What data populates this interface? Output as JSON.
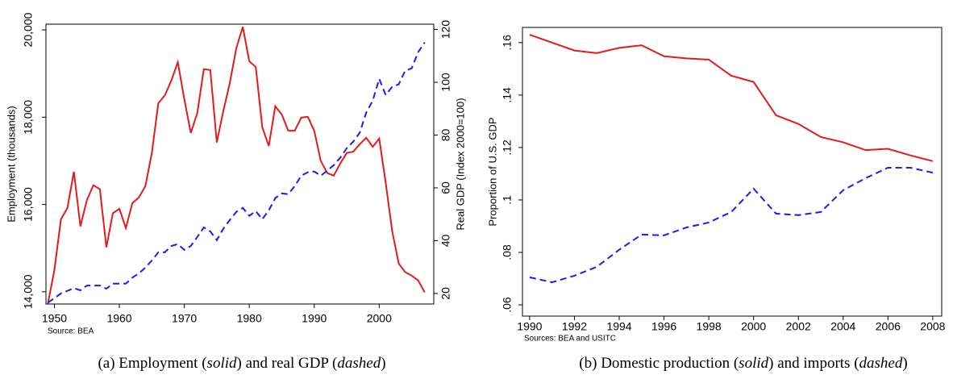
{
  "chart_data": [
    {
      "type": "line",
      "x": [
        1949,
        1950,
        1951,
        1952,
        1953,
        1954,
        1955,
        1956,
        1957,
        1958,
        1959,
        1960,
        1961,
        1962,
        1963,
        1964,
        1965,
        1966,
        1967,
        1968,
        1969,
        1970,
        1971,
        1972,
        1973,
        1974,
        1975,
        1976,
        1977,
        1978,
        1979,
        1980,
        1981,
        1982,
        1983,
        1984,
        1985,
        1986,
        1987,
        1988,
        1989,
        1990,
        1991,
        1992,
        1993,
        1994,
        1995,
        1996,
        1997,
        1998,
        1999,
        2000,
        2001,
        2002,
        2003,
        2004,
        2005,
        2006,
        2007
      ],
      "xlim": [
        1948.7,
        2008.4
      ],
      "xticks": [
        1950,
        1960,
        1970,
        1980,
        1990,
        2000
      ],
      "ylim": [
        13720,
        20130
      ],
      "yticks": [
        {
          "value": 14000,
          "label": "14,000"
        },
        {
          "value": 16000,
          "label": "16,000"
        },
        {
          "value": 18000,
          "label": "18,000"
        },
        {
          "value": 20000,
          "label": "20,000"
        }
      ],
      "y2lim": [
        16,
        122
      ],
      "y2ticks": [
        20,
        40,
        60,
        80,
        100,
        120
      ],
      "y_label": "Employment (thousands)",
      "y2_label": "Real GDP (Index 2000=100)",
      "source": "Source: BEA",
      "caption": [
        "(a) Employment (",
        "solid",
        ") and real GDP (",
        "dashed",
        ")"
      ],
      "series": [
        {
          "color": "#e41a1c",
          "linestyle": "solid",
          "values": [
            13730,
            14500,
            15660,
            15920,
            16750,
            15500,
            16100,
            16440,
            16350,
            15020,
            15800,
            15900,
            15460,
            16030,
            16160,
            16420,
            17180,
            18320,
            18500,
            18840,
            19260,
            18410,
            17640,
            18100,
            19100,
            19080,
            17420,
            18140,
            18780,
            19580,
            20070,
            19280,
            19150,
            17770,
            17340,
            18250,
            18060,
            17690,
            17690,
            17990,
            18010,
            17690,
            17000,
            16720,
            16660,
            16940,
            17180,
            17210,
            17380,
            17530,
            17320,
            17510,
            16500,
            15390,
            14650,
            14450,
            14370,
            14260,
            13990
          ]
        },
        {
          "color": "#1a1aff",
          "linestyle": "dashed",
          "axis": "y2",
          "values": [
            16.5,
            18.2,
            20,
            21,
            22,
            21.2,
            23,
            23,
            23,
            21.8,
            23.7,
            23.7,
            23.7,
            26,
            27.6,
            29.8,
            32.5,
            35.6,
            35.6,
            38,
            38.7,
            36.5,
            38,
            41.4,
            45,
            43.5,
            40.2,
            44.5,
            47.8,
            50.9,
            52.4,
            49.4,
            51.2,
            48.1,
            51.5,
            56.1,
            57.9,
            57.6,
            60.7,
            64.6,
            65.9,
            66.2,
            64.6,
            66.5,
            68.6,
            71.4,
            75,
            77.5,
            80.9,
            88.5,
            93,
            101.3,
            95.2,
            98.3,
            99.2,
            104.4,
            105.3,
            111.4,
            115.1
          ]
        }
      ]
    },
    {
      "type": "line",
      "x": [
        1990,
        1991,
        1992,
        1993,
        1994,
        1995,
        1996,
        1997,
        1998,
        1999,
        2000,
        2001,
        2002,
        2003,
        2004,
        2005,
        2006,
        2007,
        2008
      ],
      "xlim": [
        1989.68,
        2008.4
      ],
      "xticks": [
        1990,
        1992,
        1994,
        1996,
        1998,
        2000,
        2002,
        2004,
        2006,
        2008
      ],
      "ylim": [
        0.0557,
        0.1658
      ],
      "yticks": [
        {
          "value": 0.06,
          "label": ".06"
        },
        {
          "value": 0.08,
          "label": ".08"
        },
        {
          "value": 0.1,
          "label": ".1"
        },
        {
          "value": 0.12,
          "label": ".12"
        },
        {
          "value": 0.14,
          "label": ".14"
        },
        {
          "value": 0.16,
          "label": ".16"
        }
      ],
      "y_label": "Proportion of U.S. GDP",
      "source": "Sources: BEA and USITC",
      "caption": [
        "(b) Domestic production (",
        "solid",
        ") and imports (",
        "dashed",
        ")"
      ],
      "series": [
        {
          "color": "#e41a1c",
          "linestyle": "solid",
          "values": [
            0.163,
            0.16,
            0.157,
            0.156,
            0.158,
            0.159,
            0.1548,
            0.154,
            0.1535,
            0.1474,
            0.145,
            0.1323,
            0.129,
            0.124,
            0.122,
            0.119,
            0.1195,
            0.117,
            0.1148
          ]
        },
        {
          "color": "#1a1aff",
          "linestyle": "dashed",
          "values": [
            0.0705,
            0.0686,
            0.0711,
            0.0745,
            0.081,
            0.0868,
            0.0865,
            0.0895,
            0.0914,
            0.0954,
            0.1043,
            0.0948,
            0.0942,
            0.0954,
            0.1037,
            0.1083,
            0.1123,
            0.1123,
            0.1104
          ]
        }
      ]
    }
  ]
}
